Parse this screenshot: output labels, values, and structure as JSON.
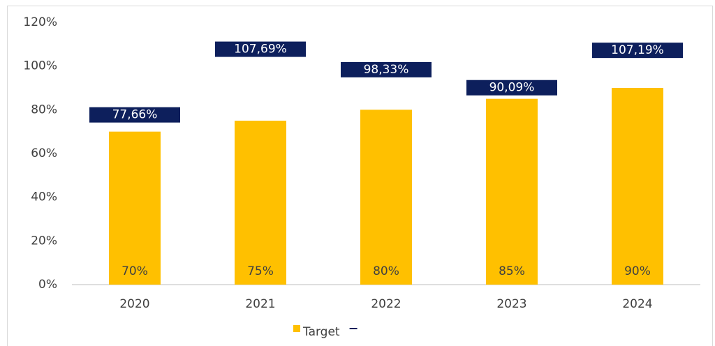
{
  "chart_data": {
    "type": "bar",
    "categories": [
      "2020",
      "2021",
      "2022",
      "2023",
      "2024"
    ],
    "series": [
      {
        "name": "Target",
        "color": "#ffc000",
        "values": [
          70,
          75,
          80,
          85,
          90
        ],
        "value_labels": [
          "70%",
          "75%",
          "80%",
          "85%",
          "90%"
        ]
      },
      {
        "color": "#0d1f5c",
        "values": [
          77.66,
          107.69,
          98.33,
          90.09,
          107.19
        ],
        "value_labels": [
          "77,66%",
          "107,69%",
          "98,33%",
          "90,09%",
          "107,19%"
        ]
      }
    ],
    "ylim": [
      0,
      120
    ],
    "yticks": [
      {
        "value": 0,
        "label": "0%"
      },
      {
        "value": 20,
        "label": "20%"
      },
      {
        "value": 40,
        "label": "40%"
      },
      {
        "value": 60,
        "label": "60%"
      },
      {
        "value": 80,
        "label": "80%"
      },
      {
        "value": 100,
        "label": "100%"
      },
      {
        "value": 120,
        "label": "120%"
      }
    ],
    "grid": false,
    "legend": "bottom"
  }
}
